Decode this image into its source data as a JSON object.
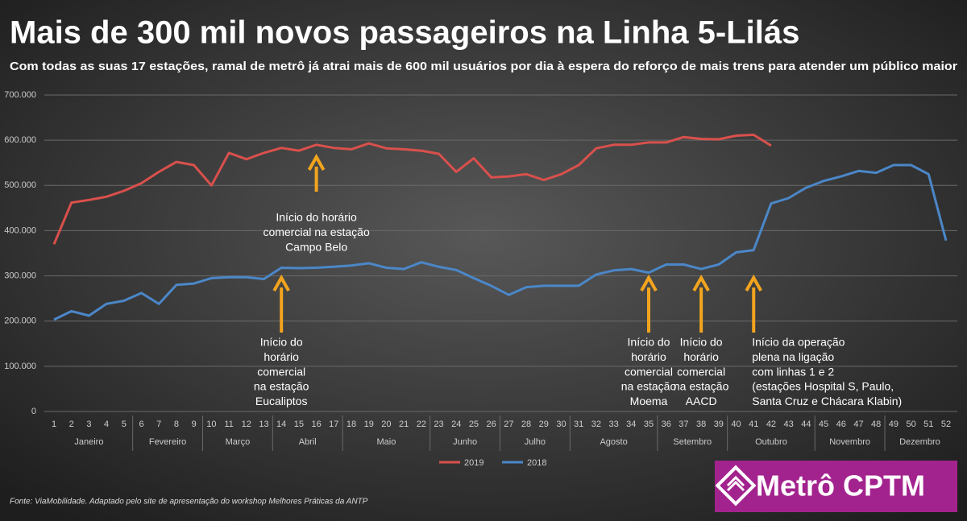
{
  "chart_data": {
    "type": "line",
    "title": "Mais de 300 mil novos passageiros na Linha 5-Lilás",
    "subtitle": "Com todas as suas 17 estações, ramal de metrô já atrai mais de 600 mil usuários por dia à espera do reforço de mais trens para atender um público maior",
    "categories": [
      "1",
      "2",
      "3",
      "4",
      "5",
      "6",
      "7",
      "8",
      "9",
      "10",
      "11",
      "12",
      "13",
      "14",
      "15",
      "16",
      "17",
      "18",
      "19",
      "20",
      "21",
      "22",
      "23",
      "24",
      "25",
      "26",
      "27",
      "28",
      "29",
      "30",
      "31",
      "32",
      "33",
      "34",
      "35",
      "36",
      "37",
      "38",
      "39",
      "40",
      "41",
      "42",
      "43",
      "44",
      "45",
      "46",
      "47",
      "48",
      "49",
      "50",
      "51",
      "52"
    ],
    "months": [
      "Janeiro",
      "Janeiro",
      "Janeiro",
      "Janeiro",
      "Janeiro",
      "Fevereiro",
      "Fevereiro",
      "Fevereiro",
      "Fevereiro",
      "Março",
      "Março",
      "Março",
      "Março",
      "Abril",
      "Abril",
      "Abril",
      "Abril",
      "Maio",
      "Maio",
      "Maio",
      "Maio",
      "Maio",
      "Junho",
      "Junho",
      "Junho",
      "Junho",
      "Julho",
      "Julho",
      "Julho",
      "Julho",
      "Agosto",
      "Agosto",
      "Agosto",
      "Agosto",
      "Agosto",
      "Setembro",
      "Setembro",
      "Setembro",
      "Setembro",
      "Outubro",
      "Outubro",
      "Outubro",
      "Outubro",
      "Outubro",
      "Novembro",
      "Novembro",
      "Novembro",
      "Novembro",
      "Dezembro",
      "Dezembro",
      "Dezembro",
      "Dezembro"
    ],
    "series": [
      {
        "name": "2019",
        "color": "#d9504c",
        "values": [
          370000,
          462000,
          468000,
          475000,
          488000,
          505000,
          530000,
          552000,
          545000,
          500000,
          572000,
          558000,
          572000,
          583000,
          577000,
          590000,
          583000,
          580000,
          593000,
          582000,
          580000,
          577000,
          570000,
          530000,
          560000,
          518000,
          520000,
          525000,
          512000,
          525000,
          545000,
          582000,
          590000,
          590000,
          595000,
          595000,
          607000,
          603000,
          602000,
          610000,
          612000,
          588000,
          null,
          null,
          null,
          null,
          null,
          null,
          null,
          null,
          null,
          null
        ]
      },
      {
        "name": "2018",
        "color": "#4b87c8",
        "values": [
          203000,
          222000,
          212000,
          238000,
          245000,
          262000,
          238000,
          280000,
          283000,
          295000,
          297000,
          297000,
          293000,
          318000,
          317000,
          318000,
          320000,
          323000,
          328000,
          318000,
          315000,
          330000,
          320000,
          313000,
          295000,
          278000,
          258000,
          275000,
          278000,
          278000,
          278000,
          303000,
          312000,
          315000,
          307000,
          325000,
          325000,
          315000,
          325000,
          352000,
          357000,
          460000,
          472000,
          495000,
          510000,
          520000,
          532000,
          528000,
          545000,
          545000,
          525000,
          378000
        ]
      }
    ],
    "ylim": [
      0,
      700000
    ],
    "yticks": [
      {
        "value": 0,
        "label": "0"
      },
      {
        "value": 100000,
        "label": "100.000"
      },
      {
        "value": 200000,
        "label": "200.000"
      },
      {
        "value": 300000,
        "label": "300.000"
      },
      {
        "value": 400000,
        "label": "400.000"
      },
      {
        "value": 500000,
        "label": "500.000"
      },
      {
        "value": 600000,
        "label": "600.000"
      },
      {
        "value": 700000,
        "label": "700.000"
      }
    ],
    "grid": true,
    "legend": "bottom",
    "annotations": [
      {
        "at": "16",
        "lines": [
          "Início do  horário",
          "comercial na estação",
          "Campo Belo"
        ]
      },
      {
        "at": "14",
        "lines": [
          "Início do",
          "horário",
          "comercial",
          "na estação",
          "Eucaliptos"
        ]
      },
      {
        "at": "35",
        "lines": [
          "Início do",
          "horário",
          "comercial",
          "na estação",
          "Moema"
        ]
      },
      {
        "at": "38",
        "lines": [
          "Início do",
          "horário",
          "comercial",
          "na estação",
          "AACD"
        ]
      },
      {
        "at": "41",
        "lines": [
          "Início da operação",
          "plena na ligação",
          "com linhas 1 e 2",
          "(estações Hospital S, Paulo,",
          "Santa Cruz e Chácara Klabin)"
        ]
      }
    ],
    "source": "Fonte: ViaMobilidade. Adaptado pelo site de apresentação do workshop Melhores Práticas da ANTP",
    "logo": "Metrô CPTM"
  }
}
